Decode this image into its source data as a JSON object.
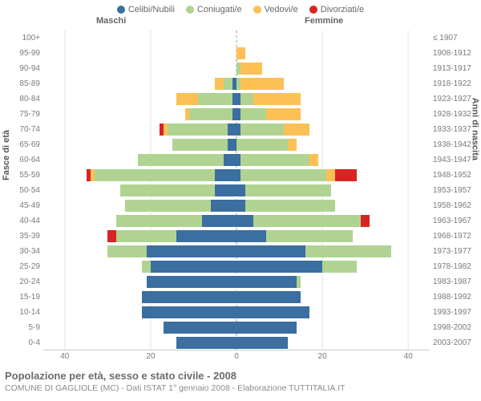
{
  "legend": {
    "items": [
      {
        "label": "Celibi/Nubili",
        "color": "#3a6fa0"
      },
      {
        "label": "Coniugati/e",
        "color": "#b0d392"
      },
      {
        "label": "Vedovi/e",
        "color": "#fcc055"
      },
      {
        "label": "Divorziati/e",
        "color": "#d92323"
      }
    ]
  },
  "headers": {
    "male": "Maschi",
    "female": "Femmine"
  },
  "axis_titles": {
    "left": "Fasce di età",
    "right": "Anni di nascita"
  },
  "colors": {
    "celibi": "#3a6fa0",
    "coniugati": "#b0d392",
    "vedovi": "#fcc055",
    "divorziati": "#d92323"
  },
  "xaxis": {
    "ticks": [
      40,
      20,
      0,
      20,
      40
    ],
    "max": 45
  },
  "age_buckets": [
    "100+",
    "95-99",
    "90-94",
    "85-89",
    "80-84",
    "75-79",
    "70-74",
    "65-69",
    "60-64",
    "55-59",
    "50-54",
    "45-49",
    "40-44",
    "35-39",
    "30-34",
    "25-29",
    "20-24",
    "15-19",
    "10-14",
    "5-9",
    "0-4"
  ],
  "birth_years": [
    "≤ 1907",
    "1908-1912",
    "1913-1917",
    "1918-1922",
    "1923-1927",
    "1928-1932",
    "1933-1937",
    "1938-1942",
    "1943-1947",
    "1948-1952",
    "1953-1957",
    "1958-1962",
    "1963-1967",
    "1968-1972",
    "1973-1977",
    "1978-1982",
    "1983-1987",
    "1988-1992",
    "1993-1997",
    "1998-2002",
    "2003-2007"
  ],
  "rows": [
    {
      "m": {
        "cel": 0,
        "con": 0,
        "ved": 0,
        "div": 0
      },
      "f": {
        "cel": 0,
        "con": 0,
        "ved": 0,
        "div": 0
      }
    },
    {
      "m": {
        "cel": 0,
        "con": 0,
        "ved": 0,
        "div": 0
      },
      "f": {
        "cel": 0,
        "con": 0,
        "ved": 2,
        "div": 0
      }
    },
    {
      "m": {
        "cel": 0,
        "con": 0,
        "ved": 0,
        "div": 0
      },
      "f": {
        "cel": 0,
        "con": 1,
        "ved": 5,
        "div": 0
      }
    },
    {
      "m": {
        "cel": 1,
        "con": 2,
        "ved": 2,
        "div": 0
      },
      "f": {
        "cel": 0,
        "con": 1,
        "ved": 10,
        "div": 0
      }
    },
    {
      "m": {
        "cel": 1,
        "con": 8,
        "ved": 5,
        "div": 0
      },
      "f": {
        "cel": 1,
        "con": 3,
        "ved": 11,
        "div": 0
      }
    },
    {
      "m": {
        "cel": 1,
        "con": 10,
        "ved": 1,
        "div": 0
      },
      "f": {
        "cel": 1,
        "con": 6,
        "ved": 8,
        "div": 0
      }
    },
    {
      "m": {
        "cel": 2,
        "con": 14,
        "ved": 1,
        "div": 1
      },
      "f": {
        "cel": 1,
        "con": 10,
        "ved": 6,
        "div": 0
      }
    },
    {
      "m": {
        "cel": 2,
        "con": 13,
        "ved": 0,
        "div": 0
      },
      "f": {
        "cel": 0,
        "con": 12,
        "ved": 2,
        "div": 0
      }
    },
    {
      "m": {
        "cel": 3,
        "con": 20,
        "ved": 0,
        "div": 0
      },
      "f": {
        "cel": 1,
        "con": 16,
        "ved": 2,
        "div": 0
      }
    },
    {
      "m": {
        "cel": 5,
        "con": 28,
        "ved": 1,
        "div": 1
      },
      "f": {
        "cel": 1,
        "con": 20,
        "ved": 2,
        "div": 5
      }
    },
    {
      "m": {
        "cel": 5,
        "con": 22,
        "ved": 0,
        "div": 0
      },
      "f": {
        "cel": 2,
        "con": 20,
        "ved": 0,
        "div": 0
      }
    },
    {
      "m": {
        "cel": 6,
        "con": 20,
        "ved": 0,
        "div": 0
      },
      "f": {
        "cel": 2,
        "con": 21,
        "ved": 0,
        "div": 0
      }
    },
    {
      "m": {
        "cel": 8,
        "con": 20,
        "ved": 0,
        "div": 0
      },
      "f": {
        "cel": 4,
        "con": 25,
        "ved": 0,
        "div": 2
      }
    },
    {
      "m": {
        "cel": 14,
        "con": 14,
        "ved": 0,
        "div": 2
      },
      "f": {
        "cel": 7,
        "con": 20,
        "ved": 0,
        "div": 0
      }
    },
    {
      "m": {
        "cel": 21,
        "con": 9,
        "ved": 0,
        "div": 0
      },
      "f": {
        "cel": 16,
        "con": 20,
        "ved": 0,
        "div": 0
      }
    },
    {
      "m": {
        "cel": 20,
        "con": 2,
        "ved": 0,
        "div": 0
      },
      "f": {
        "cel": 20,
        "con": 8,
        "ved": 0,
        "div": 0
      }
    },
    {
      "m": {
        "cel": 21,
        "con": 0,
        "ved": 0,
        "div": 0
      },
      "f": {
        "cel": 14,
        "con": 1,
        "ved": 0,
        "div": 0
      }
    },
    {
      "m": {
        "cel": 22,
        "con": 0,
        "ved": 0,
        "div": 0
      },
      "f": {
        "cel": 15,
        "con": 0,
        "ved": 0,
        "div": 0
      }
    },
    {
      "m": {
        "cel": 22,
        "con": 0,
        "ved": 0,
        "div": 0
      },
      "f": {
        "cel": 17,
        "con": 0,
        "ved": 0,
        "div": 0
      }
    },
    {
      "m": {
        "cel": 17,
        "con": 0,
        "ved": 0,
        "div": 0
      },
      "f": {
        "cel": 14,
        "con": 0,
        "ved": 0,
        "div": 0
      }
    },
    {
      "m": {
        "cel": 14,
        "con": 0,
        "ved": 0,
        "div": 0
      },
      "f": {
        "cel": 12,
        "con": 0,
        "ved": 0,
        "div": 0
      }
    }
  ],
  "footer": {
    "title": "Popolazione per età, sesso e stato civile - 2008",
    "subtitle": "COMUNE DI GAGLIOLE (MC) - Dati ISTAT 1° gennaio 2008 - Elaborazione TUTTITALIA.IT"
  }
}
